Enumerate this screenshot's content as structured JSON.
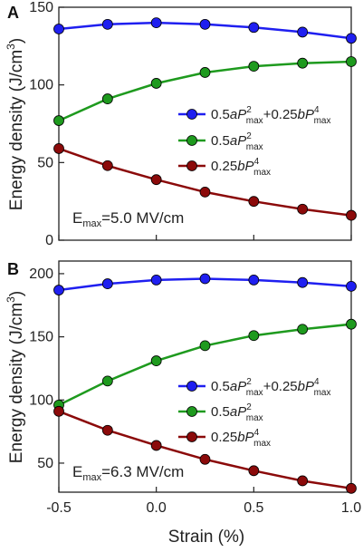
{
  "shared": {
    "x_axis_label": "Strain (%)",
    "x_ticks": [
      "-0.5",
      "0.0",
      "0.5",
      "1.0"
    ],
    "y_axis_label_main": "Energy density (J/cm",
    "y_axis_label_sup": "3",
    "y_axis_label_close": ")"
  },
  "legend_text": {
    "total": {
      "a": "0.5",
      "aVar": "a",
      "P": "P",
      "sup2": "2",
      "sub": "max",
      "plus": "+0.25",
      "bVar": "b",
      "P2": "P",
      "sup4": "4",
      "sub2": "max"
    },
    "a_term": {
      "coef": "0.5",
      "var": "a",
      "P": "P",
      "sup": "2",
      "sub": "max"
    },
    "b_term": {
      "coef": "0.25",
      "var": "b",
      "P": "P",
      "sup": "4",
      "sub": "max"
    }
  },
  "chart_data": [
    {
      "type": "line",
      "panel_label": "A",
      "annotation": {
        "E": "E",
        "sub": "max",
        "value": "=5.0 MV/cm"
      },
      "x": [
        -0.5,
        -0.25,
        0.0,
        0.25,
        0.5,
        0.75,
        1.0
      ],
      "xlim": [
        -0.5,
        1.0
      ],
      "ylim": [
        0,
        150
      ],
      "y_ticks": [
        "0",
        "50",
        "100",
        "150"
      ],
      "legend_position": "center-right",
      "series": [
        {
          "key": "total",
          "color": "#1f1ff0",
          "values": [
            136,
            139,
            140,
            139,
            137,
            134,
            130
          ]
        },
        {
          "key": "a_term",
          "color": "#1e9a1e",
          "values": [
            77,
            91,
            101,
            108,
            112,
            114,
            115
          ]
        },
        {
          "key": "b_term",
          "color": "#8b0a0a",
          "values": [
            59,
            48,
            39,
            31,
            25,
            20,
            16
          ]
        }
      ]
    },
    {
      "type": "line",
      "panel_label": "B",
      "annotation": {
        "E": "E",
        "sub": "max",
        "value": "=6.3 MV/cm"
      },
      "x": [
        -0.5,
        -0.25,
        0.0,
        0.25,
        0.5,
        0.75,
        1.0
      ],
      "xlim": [
        -0.5,
        1.0
      ],
      "ylim": [
        27,
        210
      ],
      "y_ticks": [
        "50",
        "100",
        "150",
        "200"
      ],
      "legend_position": "center-right",
      "series": [
        {
          "key": "total",
          "color": "#1f1ff0",
          "values": [
            187,
            192,
            195,
            196,
            195,
            193,
            190
          ]
        },
        {
          "key": "a_term",
          "color": "#1e9a1e",
          "values": [
            96,
            115,
            131,
            143,
            151,
            156,
            160
          ]
        },
        {
          "key": "b_term",
          "color": "#8b0a0a",
          "values": [
            91,
            76,
            64,
            53,
            44,
            36,
            30
          ]
        }
      ]
    }
  ]
}
